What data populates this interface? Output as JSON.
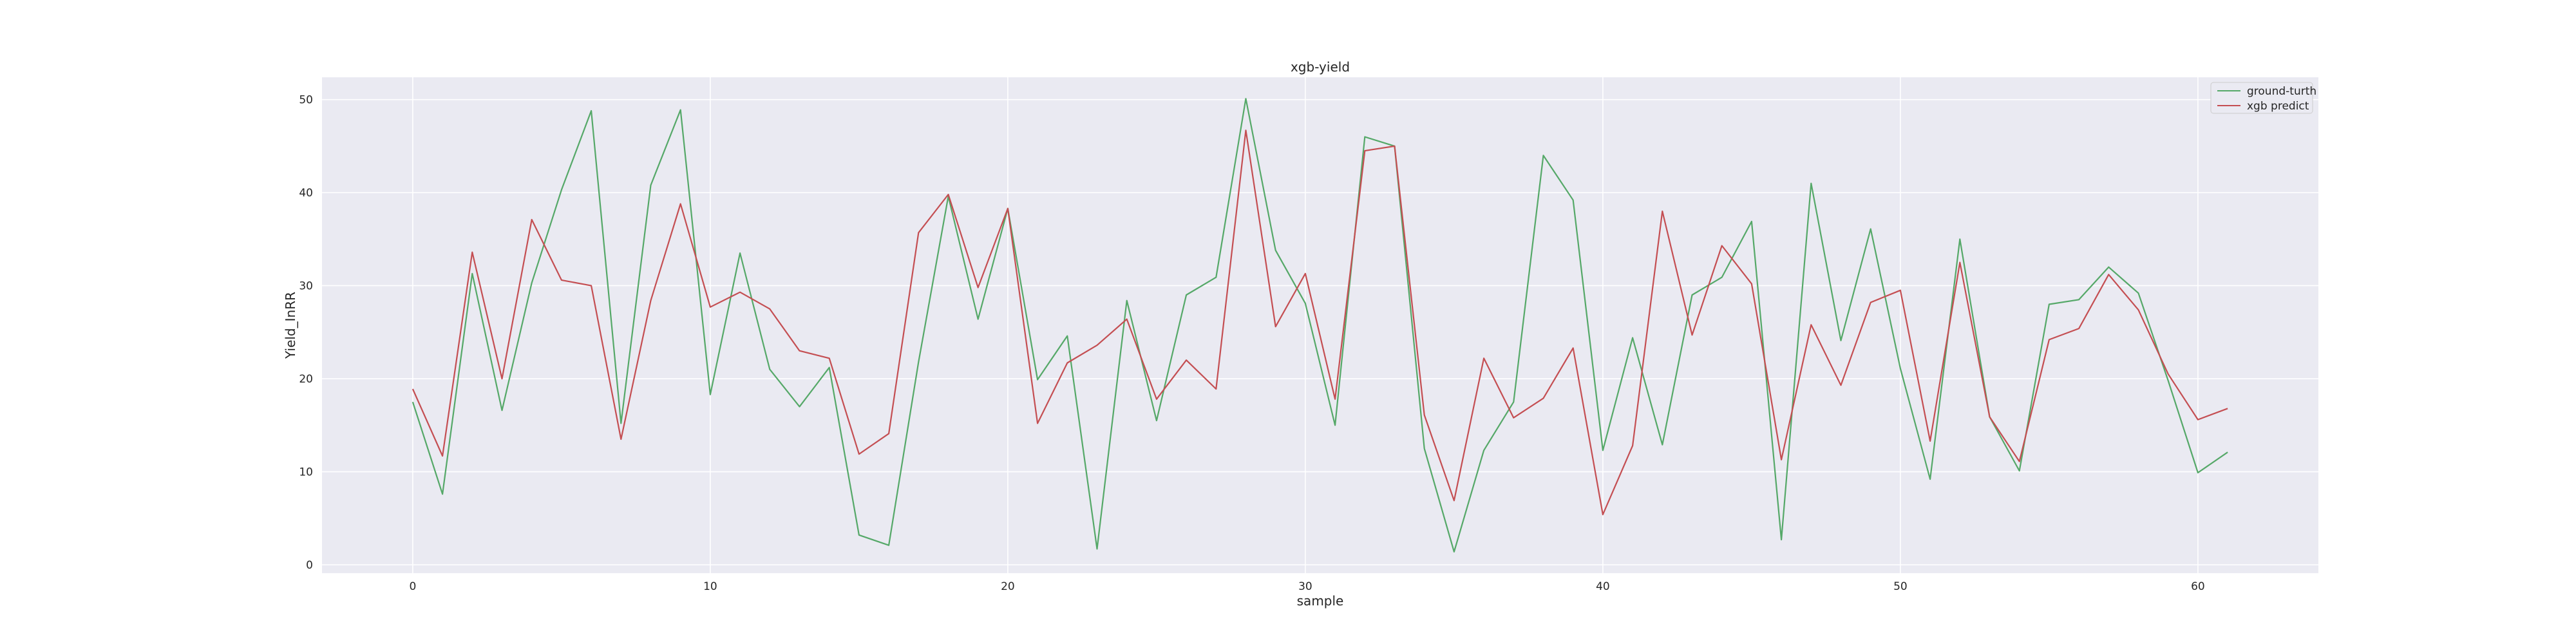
{
  "chart_data": {
    "type": "line",
    "title": "xgb-yield",
    "xlabel": "sample",
    "ylabel": "Yield_InRR",
    "xlim": [
      -3.05,
      64.05
    ],
    "ylim": [
      -0.9,
      52.4
    ],
    "xticks": [
      0,
      10,
      20,
      30,
      40,
      50,
      60
    ],
    "yticks": [
      0,
      10,
      20,
      30,
      40,
      50
    ],
    "grid": true,
    "legend_position": "top-right",
    "x": [
      0,
      1,
      2,
      3,
      4,
      5,
      6,
      7,
      8,
      9,
      10,
      11,
      12,
      13,
      14,
      15,
      16,
      17,
      18,
      19,
      20,
      21,
      22,
      23,
      24,
      25,
      26,
      27,
      28,
      29,
      30,
      31,
      32,
      33,
      34,
      35,
      36,
      37,
      38,
      39,
      40,
      41,
      42,
      43,
      44,
      45,
      46,
      47,
      48,
      49,
      50,
      51,
      52,
      53,
      54,
      55,
      56,
      57,
      58,
      59,
      60,
      61
    ],
    "series": [
      {
        "name": "ground-turth",
        "color": "#55a868",
        "values": [
          17.5,
          7.6,
          31.3,
          16.6,
          30.3,
          40.3,
          48.8,
          15.2,
          40.8,
          48.9,
          18.3,
          33.5,
          21.0,
          17.0,
          21.2,
          3.2,
          2.1,
          21.8,
          39.6,
          26.4,
          38.3,
          19.9,
          24.6,
          1.7,
          28.4,
          15.5,
          29.0,
          30.9,
          50.1,
          33.8,
          28.1,
          15.0,
          46.0,
          45.0,
          12.5,
          1.4,
          12.3,
          17.5,
          44.0,
          39.2,
          12.3,
          24.4,
          12.9,
          29.0,
          30.9,
          36.9,
          2.7,
          41.0,
          24.1,
          36.1,
          21.1,
          9.2,
          35.0,
          15.9,
          10.1,
          28.0,
          28.5,
          32.0,
          29.2,
          19.8,
          9.9,
          12.1
        ]
      },
      {
        "name": "xgb predict",
        "color": "#c44e52",
        "values": [
          18.9,
          11.7,
          33.6,
          20.0,
          37.1,
          30.6,
          30.0,
          13.5,
          28.4,
          38.8,
          27.7,
          29.3,
          27.5,
          23.0,
          22.2,
          11.9,
          14.1,
          35.7,
          39.8,
          29.8,
          38.3,
          15.2,
          21.7,
          23.6,
          26.4,
          17.8,
          22.0,
          18.9,
          46.7,
          25.6,
          31.3,
          17.8,
          44.5,
          45.0,
          16.1,
          6.9,
          22.2,
          15.8,
          17.9,
          23.3,
          5.4,
          12.8,
          38.0,
          24.7,
          34.3,
          30.2,
          11.3,
          25.8,
          19.3,
          28.2,
          29.5,
          13.3,
          32.5,
          15.9,
          11.1,
          24.2,
          25.4,
          31.2,
          27.4,
          20.5,
          15.6,
          16.8
        ]
      }
    ]
  }
}
